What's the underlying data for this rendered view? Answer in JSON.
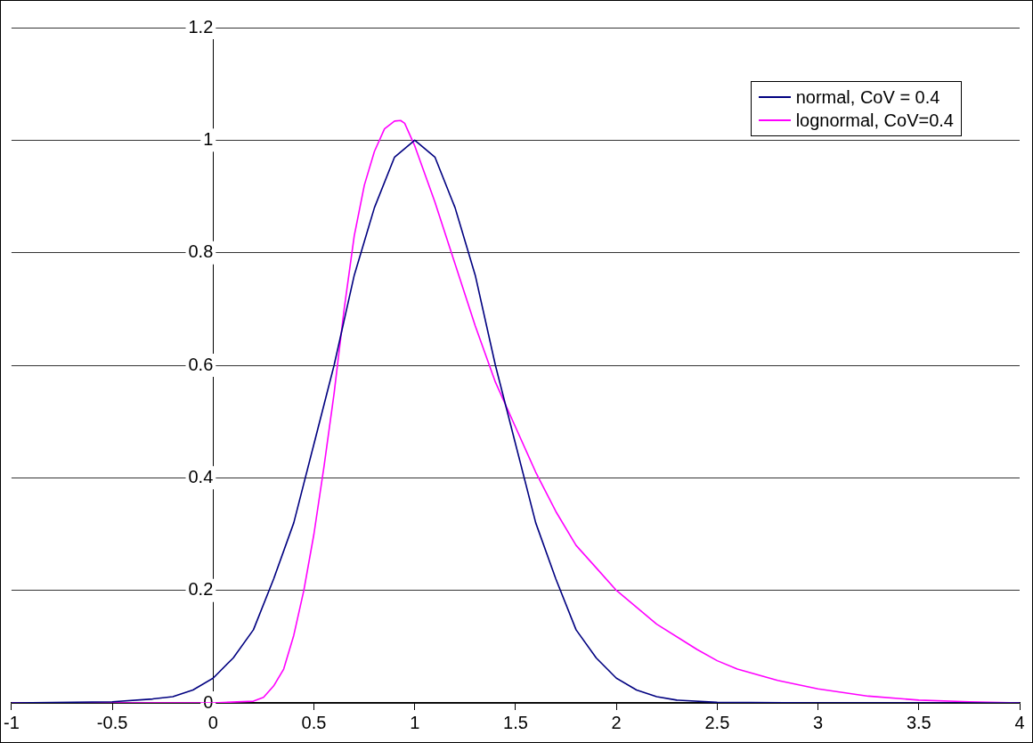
{
  "chart_data": {
    "type": "line",
    "xlim": [
      -1,
      4
    ],
    "xticks": [
      -1,
      -0.5,
      0,
      0.5,
      1,
      1.5,
      2,
      2.5,
      3,
      3.5,
      4
    ],
    "ylim": [
      0,
      1.2
    ],
    "yticks": [
      0,
      0.2,
      0.4,
      0.6,
      0.8,
      1,
      1.2
    ],
    "grid": "y",
    "legend": "top right",
    "marker": "none",
    "line_style": "solid",
    "series": [
      {
        "name": "normal, CoV = 0.4",
        "color": "#000080",
        "x": [
          -1,
          -0.5,
          -0.3,
          -0.2,
          -0.1,
          0,
          0.1,
          0.2,
          0.3,
          0.4,
          0.5,
          0.6,
          0.7,
          0.8,
          0.9,
          1,
          1.1,
          1.2,
          1.3,
          1.4,
          1.5,
          1.6,
          1.7,
          1.8,
          1.9,
          2,
          2.1,
          2.2,
          2.3,
          2.5,
          3,
          4
        ],
        "values": [
          0,
          0.002,
          0.007,
          0.011,
          0.023,
          0.044,
          0.08,
          0.13,
          0.22,
          0.32,
          0.46,
          0.6,
          0.76,
          0.88,
          0.97,
          1,
          0.97,
          0.88,
          0.76,
          0.6,
          0.46,
          0.32,
          0.22,
          0.13,
          0.08,
          0.044,
          0.023,
          0.011,
          0.005,
          0.001,
          0,
          0
        ]
      },
      {
        "name": "lognormal, CoV=0.4",
        "color": "#ff00ff",
        "x": [
          -1,
          0,
          0.2,
          0.25,
          0.3,
          0.35,
          0.4,
          0.45,
          0.5,
          0.55,
          0.6,
          0.65,
          0.7,
          0.75,
          0.8,
          0.85,
          0.9,
          0.93,
          0.95,
          1,
          1.05,
          1.1,
          1.2,
          1.3,
          1.4,
          1.5,
          1.6,
          1.7,
          1.8,
          1.9,
          2,
          2.2,
          2.4,
          2.5,
          2.6,
          2.8,
          3,
          3.25,
          3.5,
          3.75,
          4
        ],
        "values": [
          0,
          0,
          0.003,
          0.01,
          0.03,
          0.06,
          0.12,
          0.2,
          0.3,
          0.42,
          0.55,
          0.7,
          0.83,
          0.92,
          0.98,
          1.02,
          1.034,
          1.035,
          1.03,
          0.99,
          0.94,
          0.89,
          0.78,
          0.67,
          0.57,
          0.49,
          0.41,
          0.34,
          0.28,
          0.24,
          0.2,
          0.14,
          0.095,
          0.075,
          0.06,
          0.04,
          0.025,
          0.012,
          0.005,
          0.002,
          0
        ]
      }
    ]
  }
}
